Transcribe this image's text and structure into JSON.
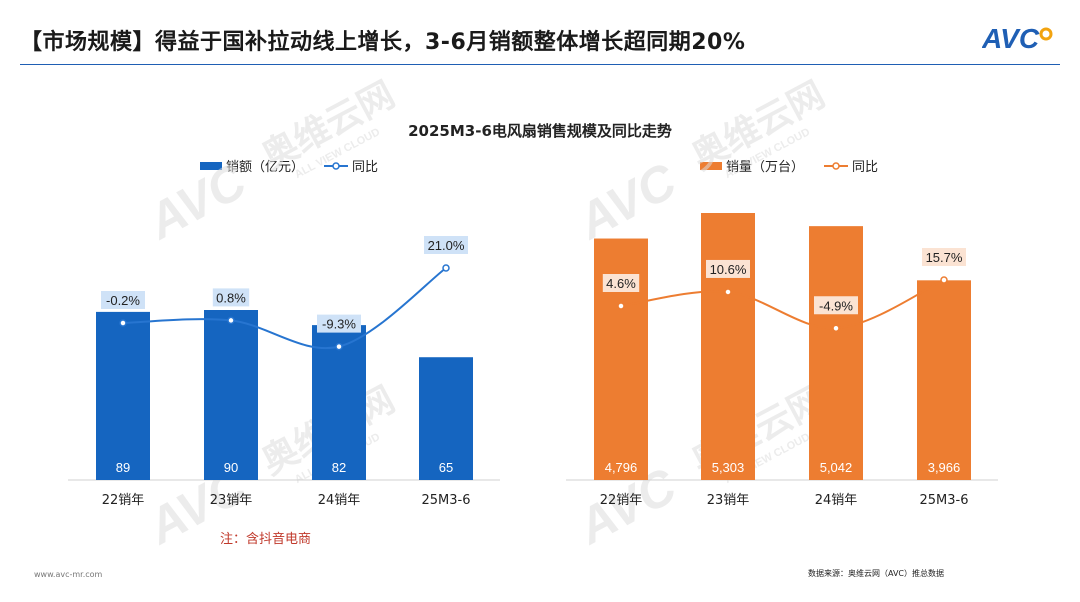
{
  "header": {
    "title": "【市场规模】得益于国补拉动线上增长，3-6月销额整体增长超同期20%",
    "logo_text": "AVC",
    "accent_color": "#1f5fb4"
  },
  "chart_title": "2025M3-6电风扇销售规模及同比走势",
  "watermark_text": "奥维云网",
  "watermark_sub": "ALL VIEW CLOUD",
  "note": "注：含抖音电商",
  "footer": {
    "left": "www.avc-mr.com",
    "right": "数据来源：奥维云网（AVC）推总数据"
  },
  "chart_data": [
    {
      "type": "bar",
      "categories": [
        "22销年",
        "23销年",
        "24销年",
        "25M3-6"
      ],
      "series": [
        {
          "name": "销额（亿元）",
          "kind": "bar",
          "values": [
            89,
            90,
            82,
            65
          ],
          "color": "#1565c0"
        },
        {
          "name": "同比",
          "kind": "line",
          "values": [
            -0.2,
            0.8,
            -9.3,
            21.0
          ],
          "labels": [
            "-0.2%",
            "0.8%",
            "-9.3%",
            "21.0%"
          ],
          "color": "#2775d0",
          "label_bg": "#cfe2f7"
        }
      ],
      "bar_labels": [
        "89",
        "90",
        "82",
        "65"
      ]
    },
    {
      "type": "bar",
      "categories": [
        "22销年",
        "23销年",
        "24销年",
        "25M3-6"
      ],
      "series": [
        {
          "name": "销量（万台）",
          "kind": "bar",
          "values": [
            4796,
            5303,
            5042,
            3966
          ],
          "color": "#ed7d31"
        },
        {
          "name": "同比",
          "kind": "line",
          "values": [
            4.6,
            10.6,
            -4.9,
            15.7
          ],
          "labels": [
            "4.6%",
            "10.6%",
            "-4.9%",
            "15.7%"
          ],
          "color": "#ed7d31",
          "label_bg": "#fbe3d3"
        }
      ],
      "bar_labels": [
        "4,796",
        "5,303",
        "5,042",
        "3,966"
      ]
    }
  ]
}
